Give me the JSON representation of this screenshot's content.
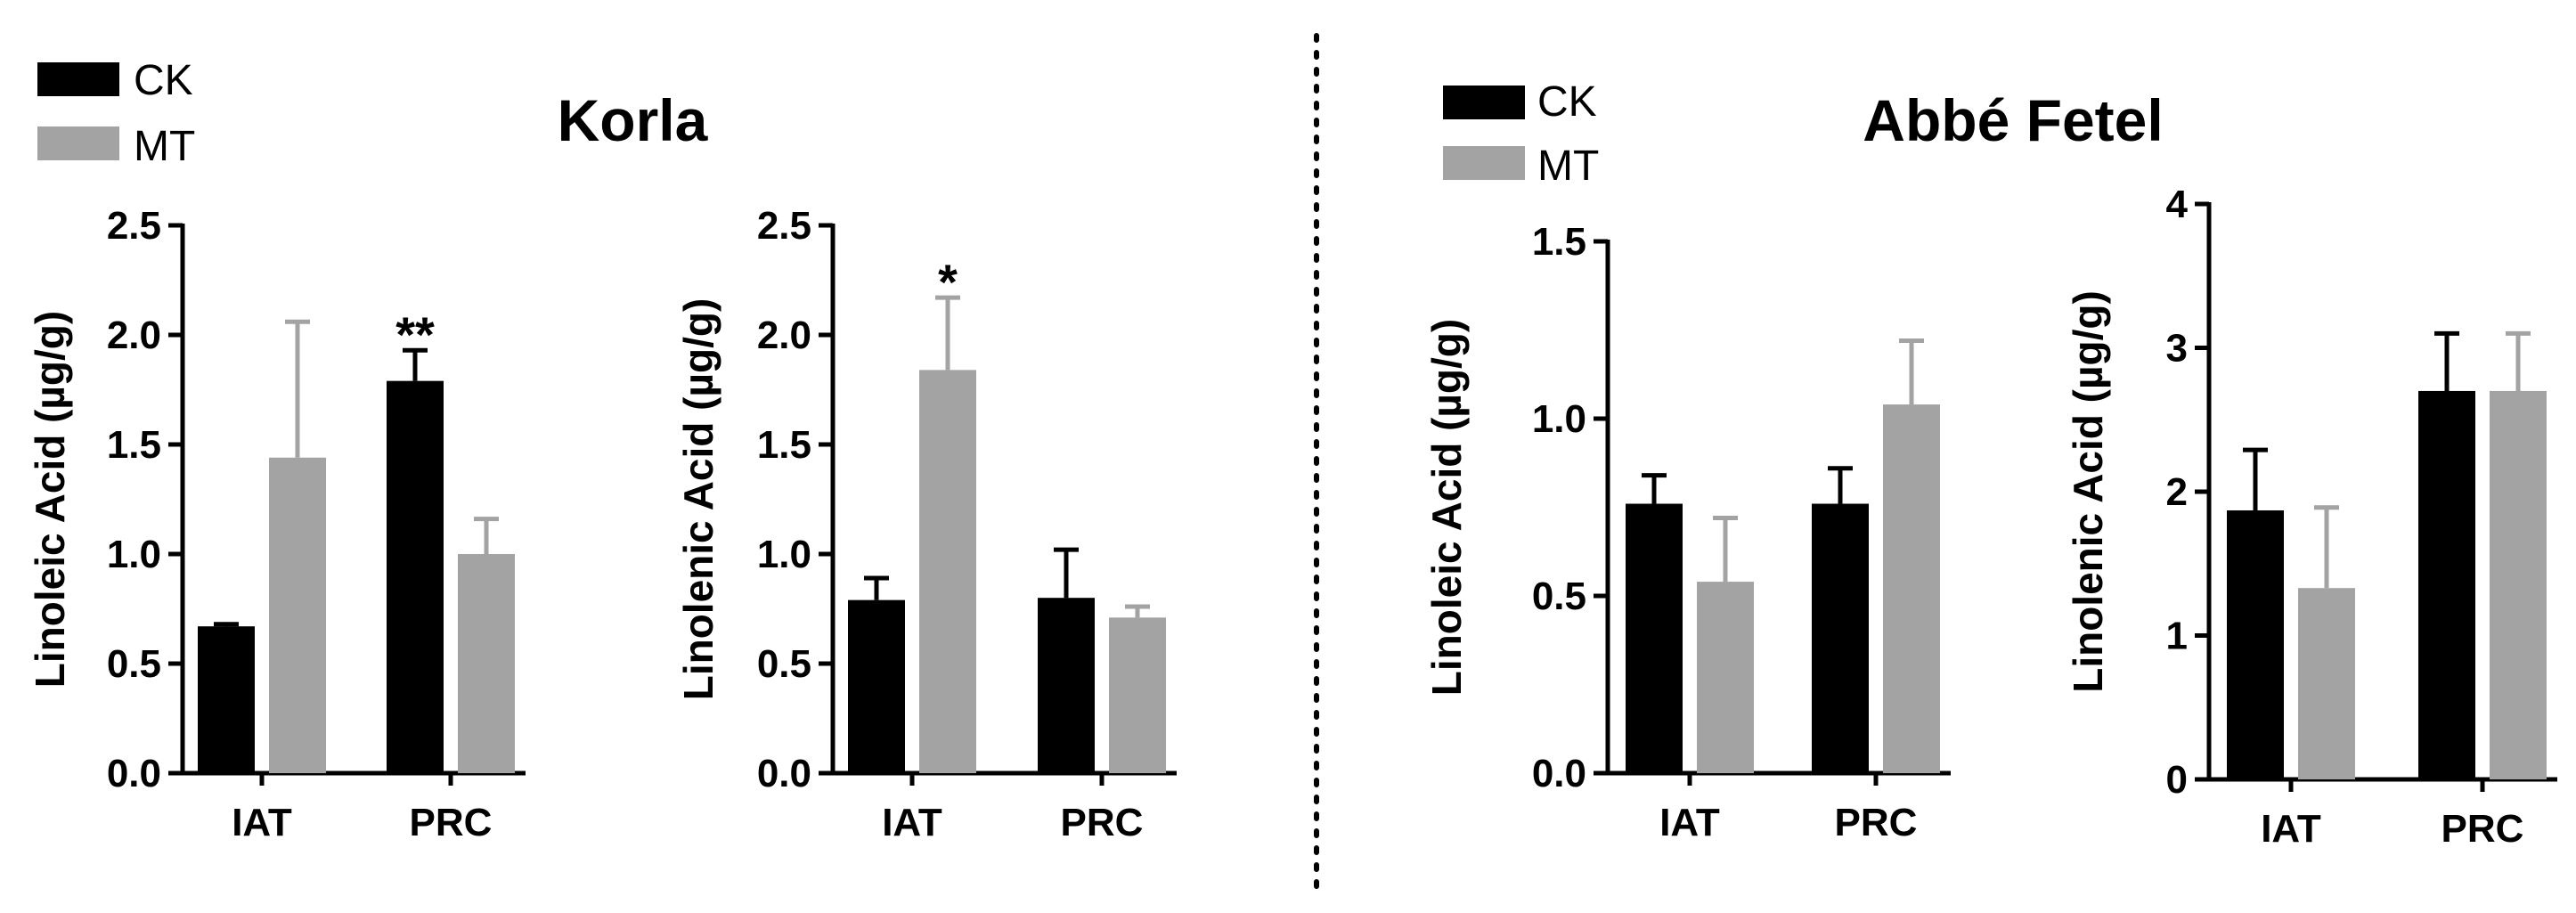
{
  "colors": {
    "CK": "#000000",
    "MT": "#a3a3a3",
    "axis": "#000000"
  },
  "groups": [
    {
      "title": "Korla",
      "legend": [
        "CK",
        "MT"
      ]
    },
    {
      "title": "Abbé Fetel",
      "legend": [
        "CK",
        "MT"
      ]
    }
  ],
  "chart_data": [
    {
      "type": "bar",
      "group": "Korla",
      "ylabel": "Linoleic Acid (µg/g)",
      "categories": [
        "IAT",
        "PRC"
      ],
      "ylim": [
        0,
        2.5
      ],
      "yticks": [
        0,
        0.5,
        1,
        1.5,
        2,
        2.5
      ],
      "ytick_labels": [
        "0.0",
        "0.5",
        "1.0",
        "1.5",
        "2.0",
        "2.5"
      ],
      "series": [
        {
          "name": "CK",
          "values": [
            0.67,
            1.79
          ],
          "errors": [
            0.01,
            0.14
          ]
        },
        {
          "name": "MT",
          "values": [
            1.44,
            1.0
          ],
          "errors": [
            0.62,
            0.16
          ]
        }
      ],
      "annotations": [
        {
          "category": "PRC",
          "series": "CK",
          "text": "**"
        }
      ]
    },
    {
      "type": "bar",
      "group": "Korla",
      "ylabel": "Linolenic Acid (µg/g)",
      "categories": [
        "IAT",
        "PRC"
      ],
      "ylim": [
        0,
        2.5
      ],
      "yticks": [
        0,
        0.5,
        1,
        1.5,
        2,
        2.5
      ],
      "ytick_labels": [
        "0.0",
        "0.5",
        "1.0",
        "1.5",
        "2.0",
        "2.5"
      ],
      "series": [
        {
          "name": "CK",
          "values": [
            0.79,
            0.8
          ],
          "errors": [
            0.1,
            0.22
          ]
        },
        {
          "name": "MT",
          "values": [
            1.84,
            0.71
          ],
          "errors": [
            0.33,
            0.05
          ]
        }
      ],
      "annotations": [
        {
          "category": "IAT",
          "series": "MT",
          "text": "*"
        }
      ]
    },
    {
      "type": "bar",
      "group": "Abbé Fetel",
      "ylabel": "Linoleic Acid (µg/g)",
      "categories": [
        "IAT",
        "PRC"
      ],
      "ylim": [
        0,
        1.5
      ],
      "yticks": [
        0,
        0.5,
        1,
        1.5
      ],
      "ytick_labels": [
        "0.0",
        "0.5",
        "1.0",
        "1.5"
      ],
      "series": [
        {
          "name": "CK",
          "values": [
            0.76,
            0.76
          ],
          "errors": [
            0.08,
            0.1
          ]
        },
        {
          "name": "MT",
          "values": [
            0.54,
            1.04
          ],
          "errors": [
            0.18,
            0.18
          ]
        }
      ],
      "annotations": []
    },
    {
      "type": "bar",
      "group": "Abbé Fetel",
      "ylabel": "Linolenic Acid (µg/g)",
      "categories": [
        "IAT",
        "PRC"
      ],
      "ylim": [
        0,
        4
      ],
      "yticks": [
        0,
        1,
        2,
        3,
        4
      ],
      "ytick_labels": [
        "0",
        "1",
        "2",
        "3",
        "4"
      ],
      "series": [
        {
          "name": "CK",
          "values": [
            1.87,
            2.7
          ],
          "errors": [
            0.42,
            0.4
          ]
        },
        {
          "name": "MT",
          "values": [
            1.33,
            2.7
          ],
          "errors": [
            0.56,
            0.4
          ]
        }
      ],
      "annotations": []
    }
  ]
}
